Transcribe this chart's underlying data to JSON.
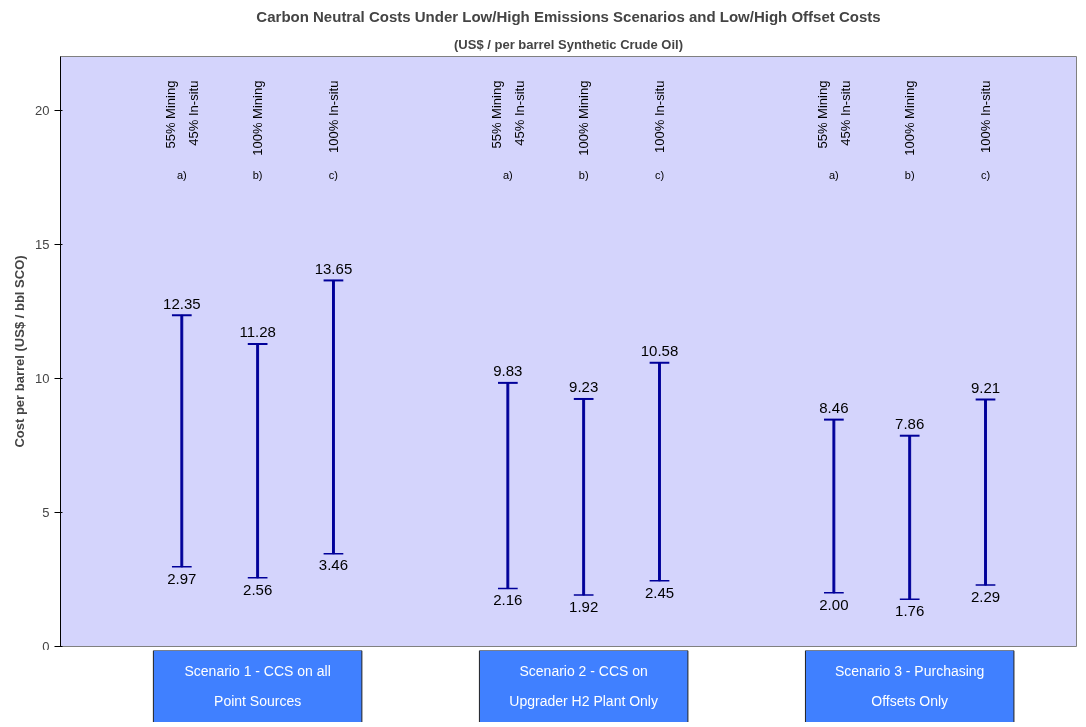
{
  "chart_data": {
    "type": "bar",
    "title": "Carbon Neutral Costs Under Low/High Emissions Scenarios and Low/High Offset Costs",
    "subtitle": "(US$ / per barrel Synthetic Crude Oil)",
    "ylabel": "Cost per barrel (US$ / bbl SCO)",
    "categories": [
      "55% Mining\n45% In-situ\na)",
      "100% Mining\nb)",
      "100% In-situ\nc)",
      "55% Mining\n45% In-situ\na)",
      "100% Mining\nb)",
      "100% In-situ\nc)",
      "55% Mining\n45% In-situ\na)",
      "100% Mining\nb)",
      "100% In-situ\nc)"
    ],
    "base": [
      2.97,
      2.56,
      3.46,
      2.16,
      1.92,
      2.45,
      2.0,
      1.76,
      2.29
    ],
    "values": [
      9.38,
      8.72,
      10.19,
      7.67,
      7.31,
      8.13,
      6.46,
      6.1,
      6.92
    ],
    "color": "#000099",
    "annotations": [
      "2.97",
      "12.35",
      "2.56",
      "11.28",
      "3.46",
      "13.65",
      "2.16",
      "9.83",
      "1.92",
      "9.23",
      "2.45",
      "10.58",
      "2.00",
      "8.46",
      "1.76",
      "7.86",
      "2.29",
      "9.21",
      "Scenario 1 - CCS on all\nPoint Sources",
      "Scenario 2 - CCS on\nUpgrader H2 Plant Only",
      "Scenario 3 - Purchasing\nOffsets Only"
    ],
    "ylim": [
      0,
      22
    ],
    "yticks": [
      0,
      5,
      10,
      15,
      20
    ],
    "grid": false
  }
}
